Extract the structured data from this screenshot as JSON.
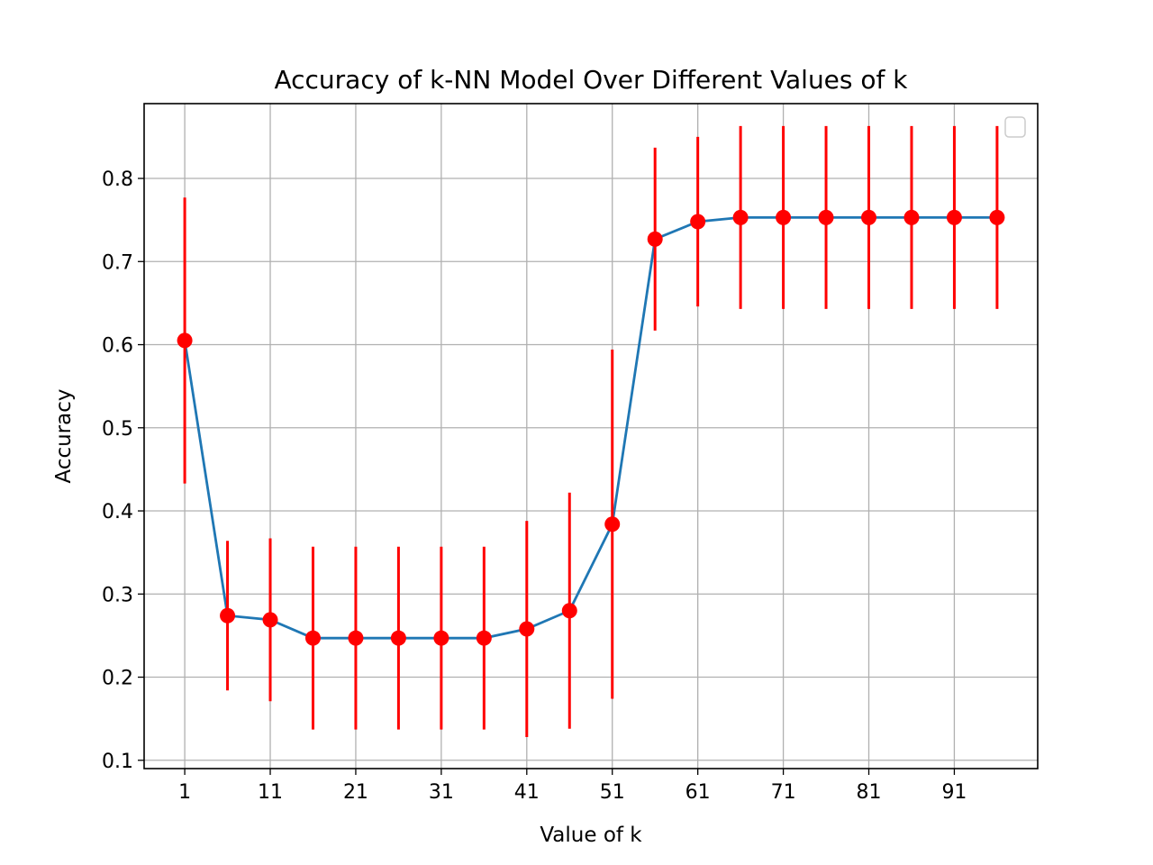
{
  "chart_data": {
    "type": "line",
    "title": "Accuracy of k-NN Model Over Different Values of k",
    "xlabel": "Value of k",
    "ylabel": "Accuracy",
    "xlim": [
      -3.75,
      100.75
    ],
    "ylim": [
      0.09,
      0.89
    ],
    "xticks": [
      1,
      11,
      21,
      31,
      41,
      51,
      61,
      71,
      81,
      91
    ],
    "xtick_labels": [
      "1",
      "11",
      "21",
      "31",
      "41",
      "51",
      "61",
      "71",
      "81",
      "91"
    ],
    "yticks": [
      0.1,
      0.2,
      0.3,
      0.4,
      0.5,
      0.6,
      0.7,
      0.8
    ],
    "ytick_labels": [
      "0.1",
      "0.2",
      "0.3",
      "0.4",
      "0.5",
      "0.6",
      "0.7",
      "0.8"
    ],
    "grid": true,
    "legend": {
      "placement": "top-right",
      "entries": []
    },
    "series": [
      {
        "line_color": "#1f77b4",
        "marker_color": "#ff0000",
        "errorbar_color": "#ff0000",
        "x": [
          1,
          6,
          11,
          16,
          21,
          26,
          31,
          36,
          41,
          46,
          51,
          56,
          61,
          66,
          71,
          76,
          81,
          86,
          91,
          96
        ],
        "y": [
          0.605,
          0.274,
          0.269,
          0.247,
          0.247,
          0.247,
          0.247,
          0.247,
          0.258,
          0.28,
          0.384,
          0.727,
          0.748,
          0.753,
          0.753,
          0.753,
          0.753,
          0.753,
          0.753,
          0.753
        ],
        "yerr": [
          0.172,
          0.09,
          0.098,
          0.11,
          0.11,
          0.11,
          0.11,
          0.11,
          0.13,
          0.142,
          0.21,
          0.11,
          0.102,
          0.11,
          0.11,
          0.11,
          0.11,
          0.11,
          0.11,
          0.11
        ]
      }
    ]
  }
}
